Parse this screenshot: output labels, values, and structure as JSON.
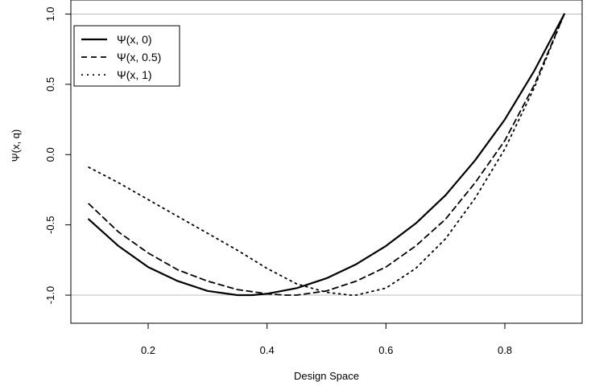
{
  "chart_data": {
    "type": "line",
    "title": "",
    "xlabel": "Design Space",
    "ylabel": "Ψ(x, q)",
    "xlim": [
      0.07,
      0.93
    ],
    "ylim": [
      -1.2,
      1.1
    ],
    "xticks": [
      {
        "value": 0.2,
        "label": "0.2"
      },
      {
        "value": 0.4,
        "label": "0.4"
      },
      {
        "value": 0.6,
        "label": "0.6"
      },
      {
        "value": 0.8,
        "label": "0.8"
      }
    ],
    "yticks": [
      {
        "value": -1.0,
        "label": "-1.0"
      },
      {
        "value": -0.5,
        "label": "-0.5"
      },
      {
        "value": 0.0,
        "label": "0.0"
      },
      {
        "value": 0.5,
        "label": "0.5"
      },
      {
        "value": 1.0,
        "label": "1.0"
      }
    ],
    "reference_lines": [
      1.0,
      -1.0
    ],
    "legend_position": "top-left",
    "series": [
      {
        "name": "Ψ(x, 0)",
        "style": "solid",
        "color": "#000000",
        "x": [
          0.1,
          0.15,
          0.2,
          0.25,
          0.3,
          0.35,
          0.375,
          0.4,
          0.45,
          0.5,
          0.55,
          0.6,
          0.65,
          0.7,
          0.75,
          0.8,
          0.85,
          0.9
        ],
        "y": [
          -0.46,
          -0.65,
          -0.8,
          -0.9,
          -0.97,
          -1.0,
          -1.0,
          -0.99,
          -0.95,
          -0.88,
          -0.78,
          -0.65,
          -0.49,
          -0.29,
          -0.04,
          0.25,
          0.6,
          1.0
        ]
      },
      {
        "name": "Ψ(x, 0.5)",
        "style": "dashed",
        "color": "#000000",
        "x": [
          0.1,
          0.15,
          0.2,
          0.25,
          0.3,
          0.35,
          0.4,
          0.43,
          0.45,
          0.5,
          0.55,
          0.6,
          0.65,
          0.7,
          0.75,
          0.8,
          0.85,
          0.9
        ],
        "y": [
          -0.35,
          -0.55,
          -0.7,
          -0.82,
          -0.9,
          -0.96,
          -0.99,
          -1.0,
          -1.0,
          -0.97,
          -0.9,
          -0.8,
          -0.65,
          -0.46,
          -0.2,
          0.1,
          0.5,
          1.0
        ]
      },
      {
        "name": "Ψ(x, 1)",
        "style": "dotted",
        "color": "#000000",
        "x": [
          0.1,
          0.15,
          0.2,
          0.25,
          0.3,
          0.35,
          0.4,
          0.45,
          0.5,
          0.54,
          0.55,
          0.6,
          0.65,
          0.7,
          0.75,
          0.8,
          0.85,
          0.9
        ],
        "y": [
          -0.09,
          -0.2,
          -0.32,
          -0.44,
          -0.56,
          -0.68,
          -0.81,
          -0.92,
          -0.98,
          -1.0,
          -1.0,
          -0.95,
          -0.81,
          -0.6,
          -0.31,
          0.04,
          0.48,
          1.0
        ]
      }
    ]
  }
}
